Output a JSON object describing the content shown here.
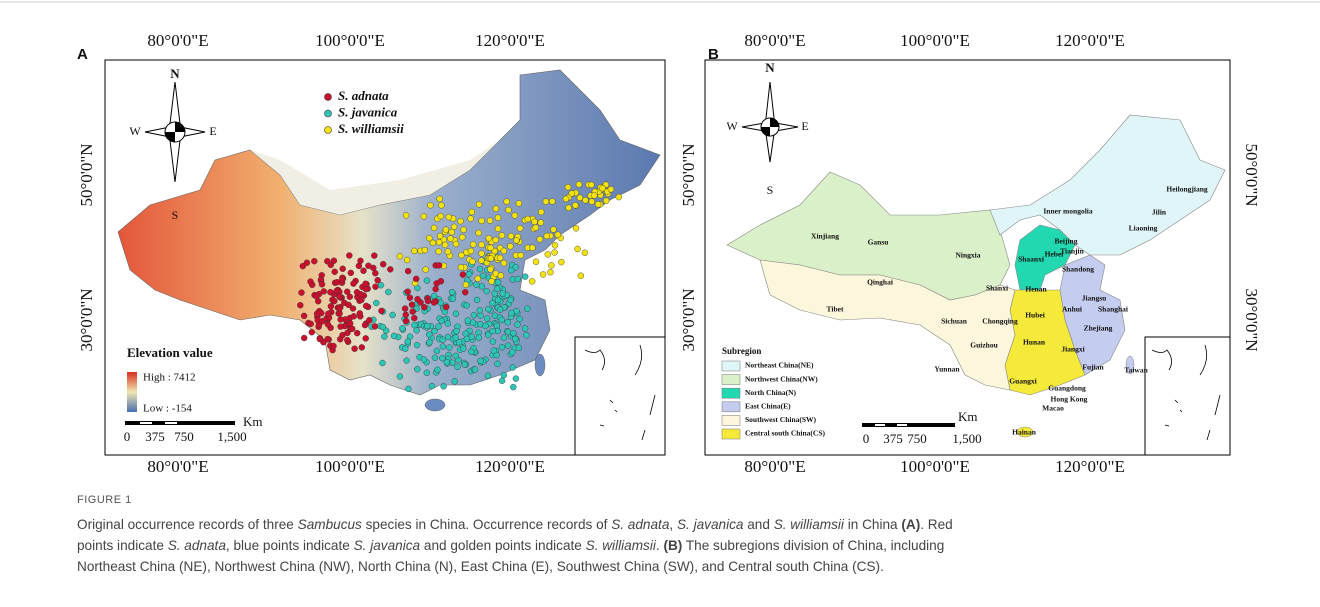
{
  "panels": [
    {
      "label": "A",
      "top_ticks": [
        "80°0'0\"E",
        "100°0'0\"E",
        "120°0'0\"E"
      ],
      "bottom_ticks": [
        "80°0'0\"E",
        "100°0'0\"E",
        "120°0'0\"E"
      ],
      "left_ticks": [
        "50°0'0\"N",
        "30°0'0\"N"
      ],
      "compass": {
        "n": "N",
        "s": "S",
        "w": "W",
        "e": "E"
      },
      "legend": [
        "S. adnata",
        "S. javanica",
        "S. williamsii"
      ],
      "elevation": {
        "title": "Elevation value",
        "high": "High : 7412",
        "low": "Low : -154"
      },
      "scale": {
        "unit": "Km",
        "ticks": [
          "0",
          "375",
          "750",
          "1,500"
        ]
      }
    },
    {
      "label": "B",
      "top_ticks": [
        "80°0'0\"E",
        "100°0'0\"E",
        "120°0'0\"E"
      ],
      "bottom_ticks": [
        "80°0'0\"E",
        "100°0'0\"E",
        "120°0'0\"E"
      ],
      "left_ticks": [
        "50°0'0\"N",
        "30°0'0\"N"
      ],
      "right_ticks": [
        "50°0'0\"N",
        "30°0'0\"N"
      ],
      "compass": {
        "n": "N",
        "s": "S",
        "w": "W",
        "e": "E"
      },
      "provinces": [
        "Xinjiang",
        "Gansu",
        "Qinghai",
        "Tibet",
        "Ningxia",
        "Inner mongolia",
        "Heilongjiang",
        "Jilin",
        "Liaoning",
        "Beijing",
        "Tianjin",
        "Hebei",
        "Shaanxi",
        "Shanxi",
        "Shandong",
        "Henan",
        "Jiangsu",
        "Anhui",
        "Shanghai",
        "Sichuan",
        "Chongqing",
        "Hubei",
        "Zhejiang",
        "Jiangxi",
        "Hunan",
        "Guizhou",
        "Fujian",
        "Yunnan",
        "Taiwan",
        "Guangxi",
        "Guangdong",
        "Hong Kong",
        "Macao",
        "Hainan"
      ],
      "subregion": {
        "title": "Subregion",
        "items": [
          "Northeast China(NE)",
          "Northwest China(NW)",
          "North China(N)",
          "East China(E)",
          "Southwest China(SW)",
          "Central south China(CS)"
        ]
      },
      "scale": {
        "unit": "Km",
        "ticks": [
          "0",
          "375",
          "750",
          "1,500"
        ]
      }
    }
  ],
  "caption": {
    "label": "FIGURE 1",
    "lines": [
      [
        {
          "text": "Original occurrence records of three "
        },
        {
          "text": "Sambucus",
          "style": "italic"
        },
        {
          "text": " species in China. Occurrence records of "
        },
        {
          "text": "S. adnata",
          "style": "italic"
        },
        {
          "text": ", "
        },
        {
          "text": "S. javanica",
          "style": "italic"
        },
        {
          "text": " and "
        },
        {
          "text": "S. williamsii",
          "style": "italic"
        },
        {
          "text": " in China "
        },
        {
          "text": "(A)",
          "style": "bold"
        },
        {
          "text": ". Red"
        }
      ],
      [
        {
          "text": "points indicate "
        },
        {
          "text": "S. adnata",
          "style": "italic"
        },
        {
          "text": ", blue points indicate "
        },
        {
          "text": "S. javanica",
          "style": "italic"
        },
        {
          "text": " and golden points indicate "
        },
        {
          "text": "S. williamsii",
          "style": "italic"
        },
        {
          "text": ". "
        },
        {
          "text": "(B)",
          "style": "bold"
        },
        {
          "text": " The subregions division of China, including"
        }
      ],
      [
        {
          "text": "Northeast China (NE), Northwest China (NW), North China (N), East China (E), Southwest China (SW), and Central south China (CS)."
        }
      ]
    ]
  }
}
